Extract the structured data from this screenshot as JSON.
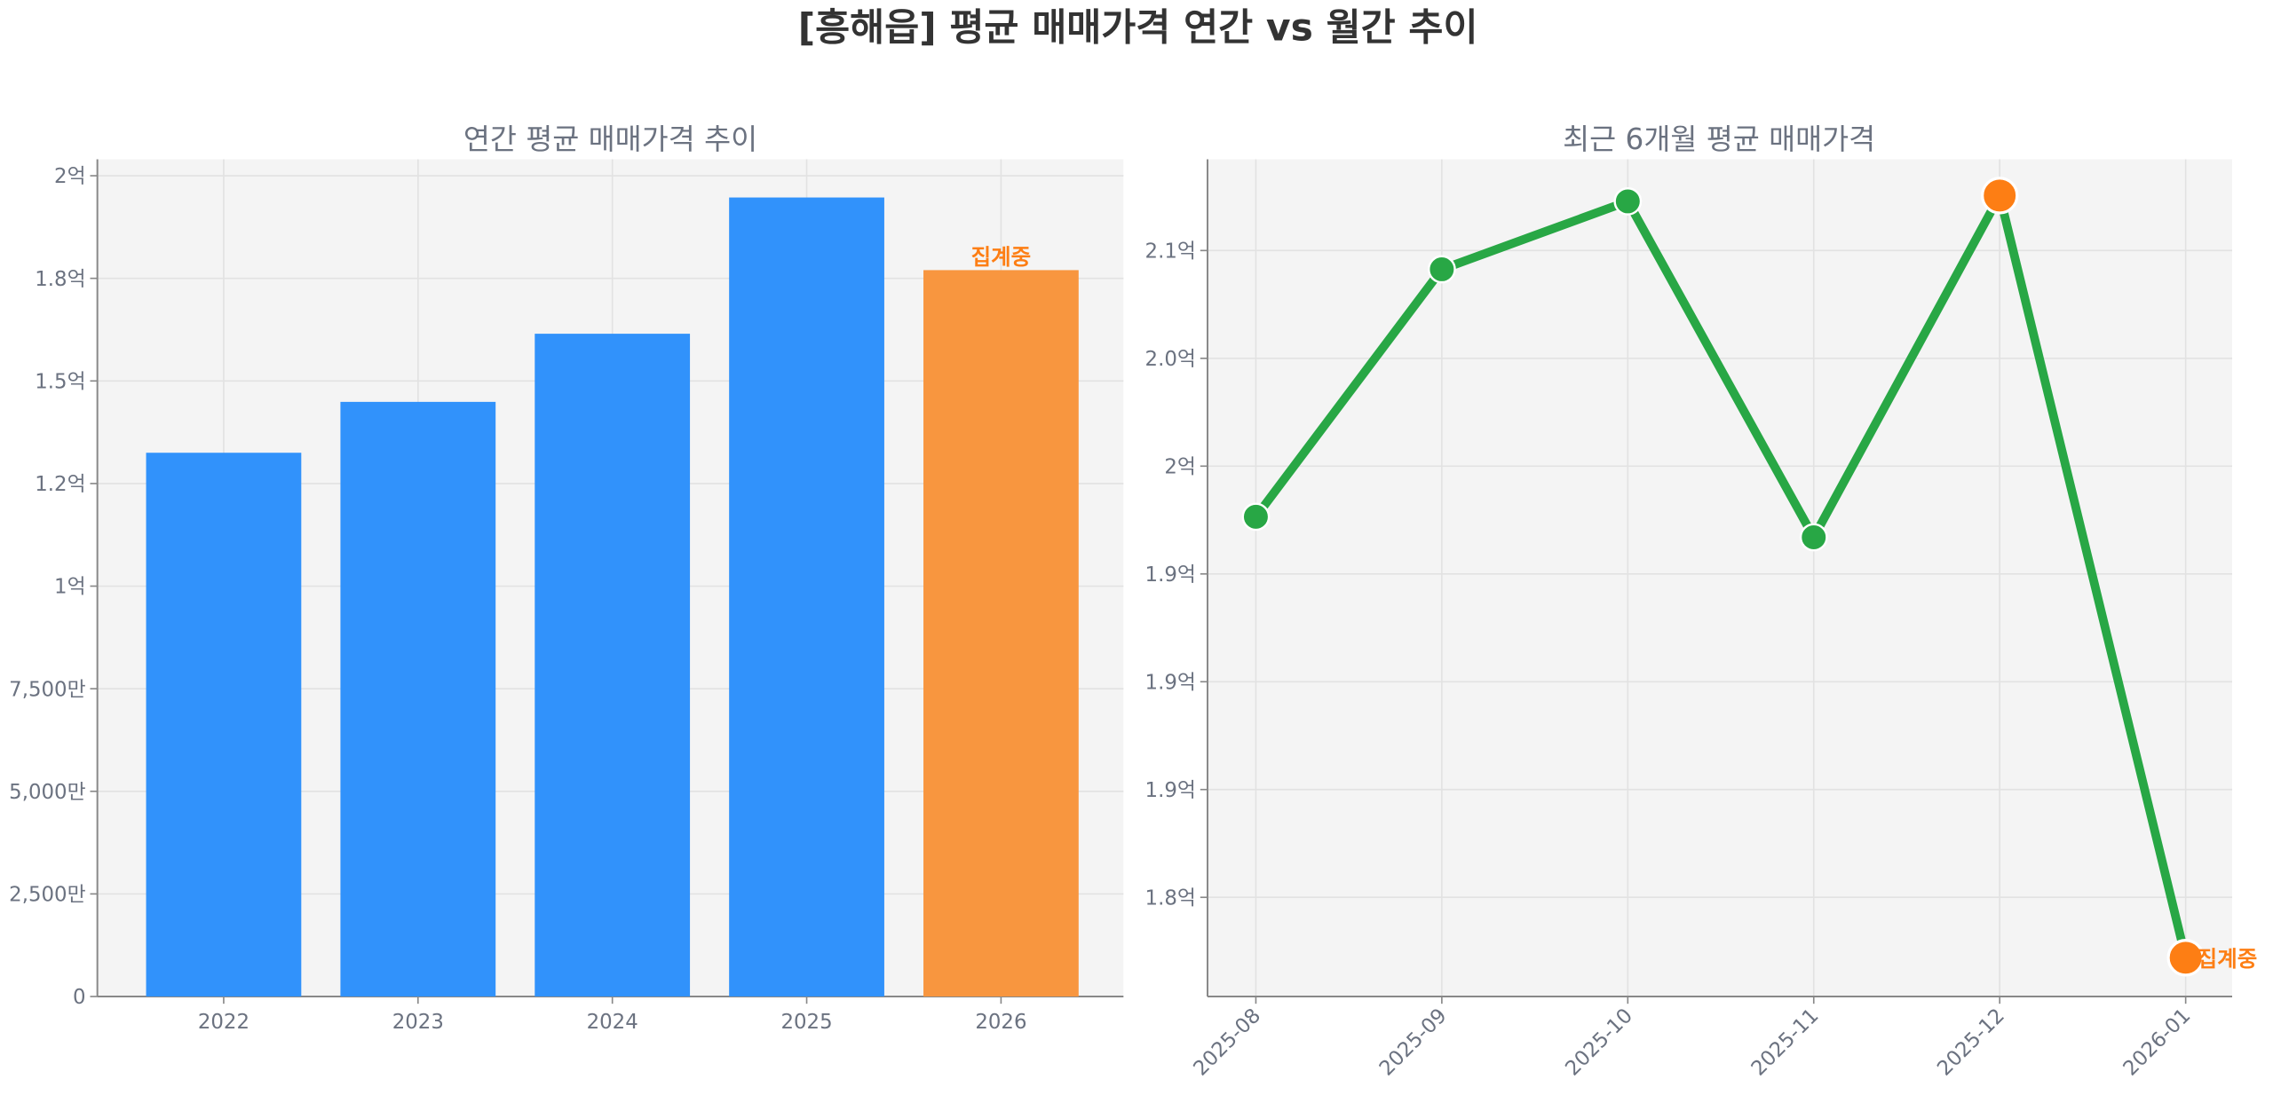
{
  "title": "[흥해읍] 평균 매매가격 연간 vs 월간 추이",
  "colors": {
    "bar": "#3192fb",
    "pending": "#f8963f",
    "line": "#28a745",
    "highlight": "#fd7e14",
    "axes_bg": "#f4f4f4",
    "text": "#6b7280"
  },
  "chart_data": [
    {
      "type": "bar",
      "title": "연간 평균 매매가격 추이",
      "categories": [
        "2022",
        "2023",
        "2024",
        "2025",
        "2026"
      ],
      "values": [
        132500000,
        144900000,
        161500000,
        194700000,
        177000000
      ],
      "bar_status": [
        "final",
        "final",
        "final",
        "final",
        "pending"
      ],
      "annotation": {
        "category": "2026",
        "text": "집계중"
      },
      "ylim": [
        0,
        204000000
      ],
      "yticks": [
        0,
        25000000,
        50000000,
        75000000,
        100000000,
        125000000,
        150000000,
        175000000,
        200000000
      ],
      "ytick_labels": [
        "0",
        "2,500만",
        "5,000만",
        "7,500만",
        "1억",
        "1.2억",
        "1.5억",
        "1.8억",
        "2억"
      ],
      "grid": true
    },
    {
      "type": "line",
      "title": "최근 6개월 평균 매매가격",
      "x": [
        "2025-08",
        "2025-09",
        "2025-10",
        "2025-11",
        "2025-12",
        "2026-01"
      ],
      "values": [
        197650000,
        209130000,
        212280000,
        196700000,
        212550000,
        177200000
      ],
      "highlighted_points": [
        "2025-12",
        "2026-01"
      ],
      "annotation": {
        "x": "2026-01",
        "text": "집계중"
      },
      "ylim": [
        175400000,
        214230000
      ],
      "yticks": [
        180000000,
        185000000,
        190000000,
        195000000,
        200000000,
        205000000,
        210000000
      ],
      "ytick_labels": [
        "1.8억",
        "1.9억",
        "1.9억",
        "1.9억",
        "2억",
        "2.0억",
        "2.1억"
      ],
      "grid": true
    }
  ]
}
